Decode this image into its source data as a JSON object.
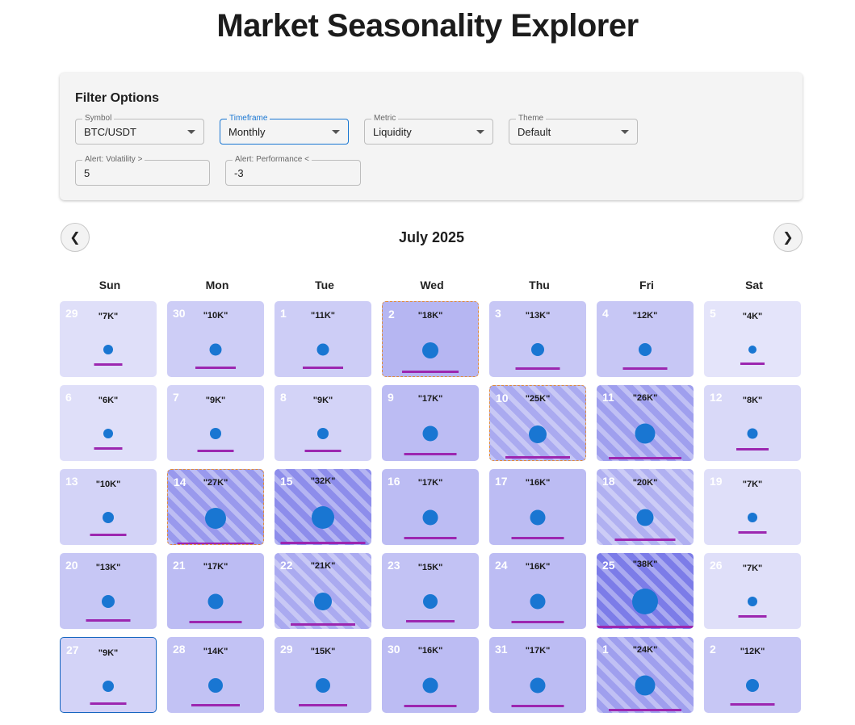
{
  "page": {
    "title": "Market Seasonality Explorer"
  },
  "filters": {
    "title": "Filter Options",
    "symbol": {
      "label": "Symbol",
      "value": "BTC/USDT"
    },
    "timeframe": {
      "label": "Timeframe",
      "value": "Monthly"
    },
    "metric": {
      "label": "Metric",
      "value": "Liquidity"
    },
    "theme": {
      "label": "Theme",
      "value": "Default"
    },
    "alert_volatility": {
      "label": "Alert: Volatility >",
      "value": "5"
    },
    "alert_performance": {
      "label": "Alert: Performance <",
      "value": "-3"
    }
  },
  "calendar": {
    "month_label": "July 2025",
    "prev_icon": "chevron-left-icon",
    "next_icon": "chevron-right-icon",
    "weekdays": [
      "Sun",
      "Mon",
      "Tue",
      "Wed",
      "Thu",
      "Fri",
      "Sat"
    ],
    "days": [
      {
        "day": "29",
        "volume": "\"7K\"",
        "intensity": 0.15,
        "pattern": false,
        "alert": false,
        "today": false
      },
      {
        "day": "30",
        "volume": "\"10K\"",
        "intensity": 0.3,
        "pattern": false,
        "alert": false,
        "today": false
      },
      {
        "day": "1",
        "volume": "\"11K\"",
        "intensity": 0.3,
        "pattern": false,
        "alert": false,
        "today": false
      },
      {
        "day": "2",
        "volume": "\"18K\"",
        "intensity": 0.5,
        "pattern": false,
        "alert": true,
        "today": false
      },
      {
        "day": "3",
        "volume": "\"13K\"",
        "intensity": 0.35,
        "pattern": false,
        "alert": false,
        "today": false
      },
      {
        "day": "4",
        "volume": "\"12K\"",
        "intensity": 0.35,
        "pattern": false,
        "alert": false,
        "today": false
      },
      {
        "day": "5",
        "volume": "\"4K\"",
        "intensity": 0.1,
        "pattern": false,
        "alert": false,
        "today": false
      },
      {
        "day": "6",
        "volume": "\"6K\"",
        "intensity": 0.15,
        "pattern": false,
        "alert": false,
        "today": false
      },
      {
        "day": "7",
        "volume": "\"9K\"",
        "intensity": 0.25,
        "pattern": false,
        "alert": false,
        "today": false
      },
      {
        "day": "8",
        "volume": "\"9K\"",
        "intensity": 0.25,
        "pattern": false,
        "alert": false,
        "today": false
      },
      {
        "day": "9",
        "volume": "\"17K\"",
        "intensity": 0.45,
        "pattern": false,
        "alert": false,
        "today": false
      },
      {
        "day": "10",
        "volume": "\"25K\"",
        "intensity": 0.6,
        "pattern": true,
        "alert": true,
        "today": false
      },
      {
        "day": "11",
        "volume": "\"26K\"",
        "intensity": 0.7,
        "pattern": true,
        "alert": false,
        "today": false
      },
      {
        "day": "12",
        "volume": "\"8K\"",
        "intensity": 0.2,
        "pattern": false,
        "alert": false,
        "today": false
      },
      {
        "day": "13",
        "volume": "\"10K\"",
        "intensity": 0.25,
        "pattern": false,
        "alert": false,
        "today": false
      },
      {
        "day": "14",
        "volume": "\"27K\"",
        "intensity": 0.75,
        "pattern": true,
        "alert": true,
        "today": false
      },
      {
        "day": "15",
        "volume": "\"32K\"",
        "intensity": 0.85,
        "pattern": true,
        "alert": false,
        "today": false
      },
      {
        "day": "16",
        "volume": "\"17K\"",
        "intensity": 0.45,
        "pattern": false,
        "alert": false,
        "today": false
      },
      {
        "day": "17",
        "volume": "\"16K\"",
        "intensity": 0.45,
        "pattern": false,
        "alert": false,
        "today": false
      },
      {
        "day": "18",
        "volume": "\"20K\"",
        "intensity": 0.55,
        "pattern": true,
        "alert": false,
        "today": false
      },
      {
        "day": "19",
        "volume": "\"7K\"",
        "intensity": 0.15,
        "pattern": false,
        "alert": false,
        "today": false
      },
      {
        "day": "20",
        "volume": "\"13K\"",
        "intensity": 0.35,
        "pattern": false,
        "alert": false,
        "today": false
      },
      {
        "day": "21",
        "volume": "\"17K\"",
        "intensity": 0.45,
        "pattern": false,
        "alert": false,
        "today": false
      },
      {
        "day": "22",
        "volume": "\"21K\"",
        "intensity": 0.6,
        "pattern": true,
        "alert": false,
        "today": false
      },
      {
        "day": "23",
        "volume": "\"15K\"",
        "intensity": 0.4,
        "pattern": false,
        "alert": false,
        "today": false
      },
      {
        "day": "24",
        "volume": "\"16K\"",
        "intensity": 0.45,
        "pattern": false,
        "alert": false,
        "today": false
      },
      {
        "day": "25",
        "volume": "\"38K\"",
        "intensity": 1.0,
        "pattern": true,
        "alert": false,
        "today": false
      },
      {
        "day": "26",
        "volume": "\"7K\"",
        "intensity": 0.15,
        "pattern": false,
        "alert": false,
        "today": false
      },
      {
        "day": "27",
        "volume": "\"9K\"",
        "intensity": 0.25,
        "pattern": false,
        "alert": false,
        "today": true
      },
      {
        "day": "28",
        "volume": "\"14K\"",
        "intensity": 0.4,
        "pattern": false,
        "alert": false,
        "today": false
      },
      {
        "day": "29",
        "volume": "\"15K\"",
        "intensity": 0.4,
        "pattern": false,
        "alert": false,
        "today": false
      },
      {
        "day": "30",
        "volume": "\"16K\"",
        "intensity": 0.45,
        "pattern": false,
        "alert": false,
        "today": false
      },
      {
        "day": "31",
        "volume": "\"17K\"",
        "intensity": 0.45,
        "pattern": false,
        "alert": false,
        "today": false
      },
      {
        "day": "1",
        "volume": "\"24K\"",
        "intensity": 0.7,
        "pattern": true,
        "alert": false,
        "today": false
      },
      {
        "day": "2",
        "volume": "\"12K\"",
        "intensity": 0.35,
        "pattern": false,
        "alert": false,
        "today": false
      }
    ]
  },
  "colors": {
    "dot": "#1976d2",
    "bar": "#9c27b0",
    "focus": "#1976d2",
    "alert_border": "#e08b3a"
  }
}
